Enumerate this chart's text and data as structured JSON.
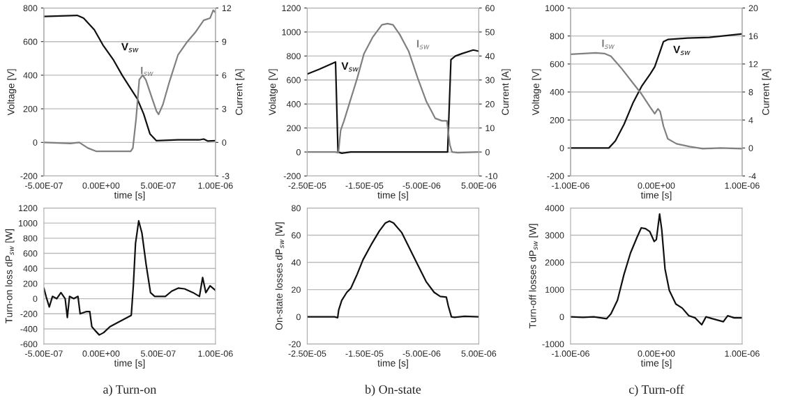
{
  "chart_data": [
    {
      "type": "line",
      "xlabel": "time [s]",
      "ylabel": "Voltage [V]",
      "y2label": "Current [A]",
      "grid": "y",
      "xlim": [
        -5e-07,
        1e-06
      ],
      "xticks": [
        {
          "value": -5e-07,
          "label": "-5.00E-07"
        },
        {
          "value": 0,
          "label": "0.00E+00"
        },
        {
          "value": 5e-07,
          "label": "5.00E-07"
        },
        {
          "value": 1e-06,
          "label": "1.00E-06"
        }
      ],
      "ylim": [
        -200,
        800
      ],
      "yticks": [
        -200,
        0,
        200,
        400,
        600,
        800
      ],
      "y2lim": [
        -3,
        12
      ],
      "y2ticks": [
        -3,
        0,
        3,
        6,
        9,
        12
      ],
      "series": [
        {
          "name": "V$_{sw}$",
          "color": "#111111",
          "x": [
            -5e-07,
            -2.09e-07,
            -1.53e-07,
            -5.9e-08,
            1.6e-08,
            1.09e-07,
            1.84e-07,
            2.59e-07,
            3.16e-07,
            3.72e-07,
            4.28e-07,
            4.84e-07,
            6.72e-07,
            8.59e-07,
            8.97e-07,
            9.34e-07,
            1e-06
          ],
          "values": [
            750,
            756,
            740,
            670,
            580,
            490,
            400,
            320,
            260,
            170,
            50,
            10,
            15,
            15,
            20,
            8,
            10
          ]
        },
        {
          "name": "I$_{sw}$",
          "color": "#808080",
          "axis": "y2",
          "x": [
            -5e-07,
            -2.66e-07,
            -1.91e-07,
            -1.16e-07,
            -4.1e-08,
            1.09e-07,
            2.59e-07,
            2.78e-07,
            3.06e-07,
            3.34e-07,
            3.63e-07,
            3.91e-07,
            4.47e-07,
            4.84e-07,
            5.03e-07,
            5.41e-07,
            5.97e-07,
            6.72e-07,
            7.47e-07,
            8.22e-07,
            8.97e-07,
            9.53e-07,
            9.81e-07,
            1e-06
          ],
          "values": [
            0,
            -0.1,
            0,
            -0.5,
            -0.8,
            -0.8,
            -0.8,
            -0.5,
            2.1,
            5.6,
            6.0,
            5.6,
            3.9,
            2.8,
            2.5,
            3.4,
            5.4,
            7.8,
            8.9,
            9.8,
            10.9,
            11.1,
            11.8,
            11.6
          ]
        }
      ]
    },
    {
      "type": "line",
      "xlabel": "time [s]",
      "ylabel": "Volatge [V]",
      "y2label": "Current [A]",
      "grid": "y",
      "xlim": [
        -2.5e-05,
        5e-06
      ],
      "xticks": [
        {
          "value": -2.5e-05,
          "label": "-2.50E-05"
        },
        {
          "value": -1.5e-05,
          "label": "-1.50E-05"
        },
        {
          "value": -5e-06,
          "label": "-5.00E-06"
        },
        {
          "value": 5e-06,
          "label": "5.00E-06"
        }
      ],
      "ylim": [
        -200,
        1200
      ],
      "yticks": [
        -200,
        0,
        200,
        400,
        600,
        800,
        1000,
        1200
      ],
      "y2lim": [
        -10,
        60
      ],
      "y2ticks": [
        -10,
        0,
        10,
        20,
        30,
        40,
        50,
        60
      ],
      "series": [
        {
          "name": "V$_{sw}$",
          "color": "#111111",
          "x": [
            -2.5e-05,
            -2.286e-05,
            -2.005e-05,
            -1.962e-05,
            -1.896e-05,
            -1.74e-05,
            -4.55e-07,
            1.3e-07,
            9.1e-07,
            2.08e-06,
            4.03e-06,
            5e-06
          ],
          "values": [
            650,
            690,
            750,
            0,
            -10,
            0,
            0,
            770,
            800,
            820,
            850,
            840
          ]
        },
        {
          "name": "I$_{sw}$",
          "color": "#808080",
          "axis": "y2",
          "x": [
            -2.5e-05,
            -2.013e-05,
            -1.955e-05,
            -1.916e-05,
            -1.857e-05,
            -1.74e-05,
            -1.623e-05,
            -1.507e-05,
            -1.351e-05,
            -1.195e-05,
            -1.097e-05,
            -1e-05,
            -8.83e-06,
            -7.27e-06,
            -5.71e-06,
            -4.16e-06,
            -2.6e-06,
            -1.43e-06,
            -5.7e-07,
            -6.7e-08,
            3.2e-07,
            1.3e-06,
            5e-06
          ],
          "values": [
            0,
            0,
            -0.3,
            9,
            13,
            22,
            31,
            41,
            48,
            53,
            53.5,
            53,
            49,
            42,
            31,
            21,
            14,
            13,
            13,
            3,
            0,
            -0.3,
            0
          ]
        }
      ]
    },
    {
      "type": "line",
      "xlabel": "time [s]",
      "ylabel": "Voltage [V]",
      "y2label": "Current [A]",
      "grid": "y",
      "xlim": [
        -1e-06,
        1e-06
      ],
      "xticks": [
        {
          "value": -1e-06,
          "label": "-1.00E-06"
        },
        {
          "value": 0,
          "label": "0.00E+00"
        },
        {
          "value": 1e-06,
          "label": "1.00E-06"
        }
      ],
      "ylim": [
        -200,
        1000
      ],
      "yticks": [
        -200,
        0,
        200,
        400,
        600,
        800,
        1000
      ],
      "y2lim": [
        -4,
        20
      ],
      "y2ticks": [
        -4,
        0,
        4,
        8,
        12,
        16,
        20
      ],
      "series": [
        {
          "name": "V$_{sw}$",
          "color": "#111111",
          "x": [
            -1e-06,
            -5.54e-07,
            -4.78e-07,
            -3.76e-07,
            -2.74e-07,
            -1.72e-07,
            -7e-08,
            -1.9e-08,
            3.2e-08,
            8.3e-08,
            1.34e-07,
            3.63e-07,
            6.18e-07,
            1e-06
          ],
          "values": [
            0,
            0,
            50,
            170,
            320,
            440,
            530,
            580,
            670,
            760,
            775,
            785,
            790,
            815
          ]
        },
        {
          "name": "I$_{sw}$",
          "color": "#808080",
          "axis": "y2",
          "x": [
            -1e-06,
            -7.07e-07,
            -6.05e-07,
            -5.29e-07,
            -4.01e-07,
            -2.74e-07,
            -1.72e-07,
            -7e-08,
            -1.9e-08,
            1.9e-08,
            4.5e-08,
            8.3e-08,
            1.34e-07,
            2.36e-07,
            3.89e-07,
            5.42e-07,
            7.45e-07,
            1e-06
          ],
          "values": [
            13.4,
            13.6,
            13.5,
            13.1,
            11.3,
            9.3,
            7.7,
            5.8,
            4.9,
            5.6,
            5.2,
            3.1,
            1.3,
            0.6,
            0.2,
            -0.1,
            0,
            -0.1
          ]
        }
      ]
    },
    {
      "type": "line",
      "xlabel": "time [s]",
      "ylabel": "Turn-on loss dP$_{sw}$ [W]",
      "grid": "y",
      "annotations": [
        "a) Turn-on"
      ],
      "xlim": [
        -5e-07,
        1e-06
      ],
      "xticks": [
        {
          "value": -5e-07,
          "label": "-5.00E-07"
        },
        {
          "value": 0,
          "label": "0.00E+00"
        },
        {
          "value": 5e-07,
          "label": "5.00E-07"
        },
        {
          "value": 1e-06,
          "label": "1.00E-06"
        }
      ],
      "ylim": [
        -600,
        1200
      ],
      "yticks": [
        -600,
        -400,
        -200,
        0,
        200,
        400,
        600,
        800,
        1000,
        1200
      ],
      "series": [
        {
          "color": "#111111",
          "x": [
            -5e-07,
            -4.81e-07,
            -4.53e-07,
            -4.25e-07,
            -3.88e-07,
            -3.51e-07,
            -3.14e-07,
            -2.95e-07,
            -2.76e-07,
            -2.39e-07,
            -2.02e-07,
            -1.83e-07,
            -1.27e-07,
            -9.9e-08,
            -8.1e-08,
            -5.3e-08,
            -1.6e-08,
            2.2e-08,
            7.8e-08,
            1.52e-07,
            2.27e-07,
            2.64e-07,
            2.82e-07,
            3.01e-07,
            3.29e-07,
            3.57e-07,
            3.94e-07,
            4.32e-07,
            4.69e-07,
            5.62e-07,
            6.18e-07,
            6.74e-07,
            7.3e-07,
            8.04e-07,
            8.6e-07,
            8.88e-07,
            9.16e-07,
            9.53e-07,
            1e-06
          ],
          "values": [
            140,
            30,
            -110,
            30,
            0,
            80,
            0,
            -250,
            30,
            0,
            30,
            -200,
            -170,
            -170,
            -370,
            -420,
            -480,
            -450,
            -370,
            -310,
            -250,
            -220,
            170,
            730,
            1030,
            870,
            450,
            80,
            30,
            30,
            100,
            140,
            130,
            80,
            30,
            280,
            80,
            170,
            110
          ]
        }
      ]
    },
    {
      "type": "line",
      "xlabel": "time [s]",
      "ylabel": "On-state losses dP$_{sw}$ [W]",
      "grid": "y",
      "annotations": [
        "b) On-state"
      ],
      "xlim": [
        -2.5e-05,
        5e-06
      ],
      "xticks": [
        {
          "value": -2.5e-05,
          "label": "-2.50E-05"
        },
        {
          "value": -1.5e-05,
          "label": "-1.50E-05"
        },
        {
          "value": -5e-06,
          "label": "-5.00E-06"
        },
        {
          "value": 5e-06,
          "label": "5.00E-06"
        }
      ],
      "ylim": [
        -20,
        80
      ],
      "yticks": [
        -20,
        0,
        20,
        40,
        60,
        80
      ],
      "series": [
        {
          "color": "#111111",
          "x": [
            -2.5e-05,
            -2.021e-05,
            -1.968e-05,
            -1.95e-05,
            -1.897e-05,
            -1.808e-05,
            -1.737e-05,
            -1.63e-05,
            -1.524e-05,
            -1.382e-05,
            -1.24e-05,
            -1.133e-05,
            -1.062e-05,
            -9.91e-06,
            -8.49e-06,
            -7.07e-06,
            -5.65e-06,
            -4.23e-06,
            -2.81e-06,
            -1.75e-06,
            -6.8e-07,
            -3.3e-07,
            2.1e-07,
            7.4e-07,
            2.51e-06,
            5e-06
          ],
          "values": [
            0,
            0,
            -0.7,
            5,
            12,
            18,
            21,
            31,
            42,
            53,
            63,
            69,
            70.4,
            69,
            62,
            50,
            38,
            26,
            18,
            15,
            14.5,
            8,
            0,
            -0.4,
            0.4,
            0
          ]
        }
      ]
    },
    {
      "type": "line",
      "xlabel": "time [s]",
      "ylabel": "Turn-off losses dP$_{sw}$ [W]",
      "grid": "y",
      "annotations": [
        "c) Turn-off"
      ],
      "xlim": [
        -1e-06,
        1e-06
      ],
      "xticks": [
        {
          "value": -1e-06,
          "label": "-1.00E-06"
        },
        {
          "value": 0,
          "label": "0.00E+00"
        },
        {
          "value": 1e-06,
          "label": "1.00E-06"
        }
      ],
      "ylim": [
        -1000,
        4000
      ],
      "yticks": [
        -1000,
        0,
        1000,
        2000,
        3000,
        4000
      ],
      "series": [
        {
          "color": "#111111",
          "x": [
            -1e-06,
            -8.56e-07,
            -7.3e-07,
            -5.79e-07,
            -5.29e-07,
            -4.53e-07,
            -3.78e-07,
            -3.02e-07,
            -2.27e-07,
            -1.76e-07,
            -1.26e-07,
            -7.6e-08,
            -2.5e-08,
            0,
            3.8e-08,
            6.3e-08,
            1.01e-07,
            1.51e-07,
            2.27e-07,
            3.02e-07,
            3.78e-07,
            4.53e-07,
            5.29e-07,
            5.79e-07,
            6.55e-07,
            7.81e-07,
            8.31e-07,
            9.07e-07,
            1e-06
          ],
          "values": [
            0,
            -20,
            0,
            -70,
            110,
            610,
            1550,
            2340,
            2910,
            3270,
            3240,
            3130,
            2770,
            2840,
            3780,
            3200,
            1760,
            970,
            470,
            320,
            40,
            -40,
            -290,
            0,
            -70,
            -180,
            40,
            -40,
            -40
          ]
        }
      ]
    }
  ]
}
